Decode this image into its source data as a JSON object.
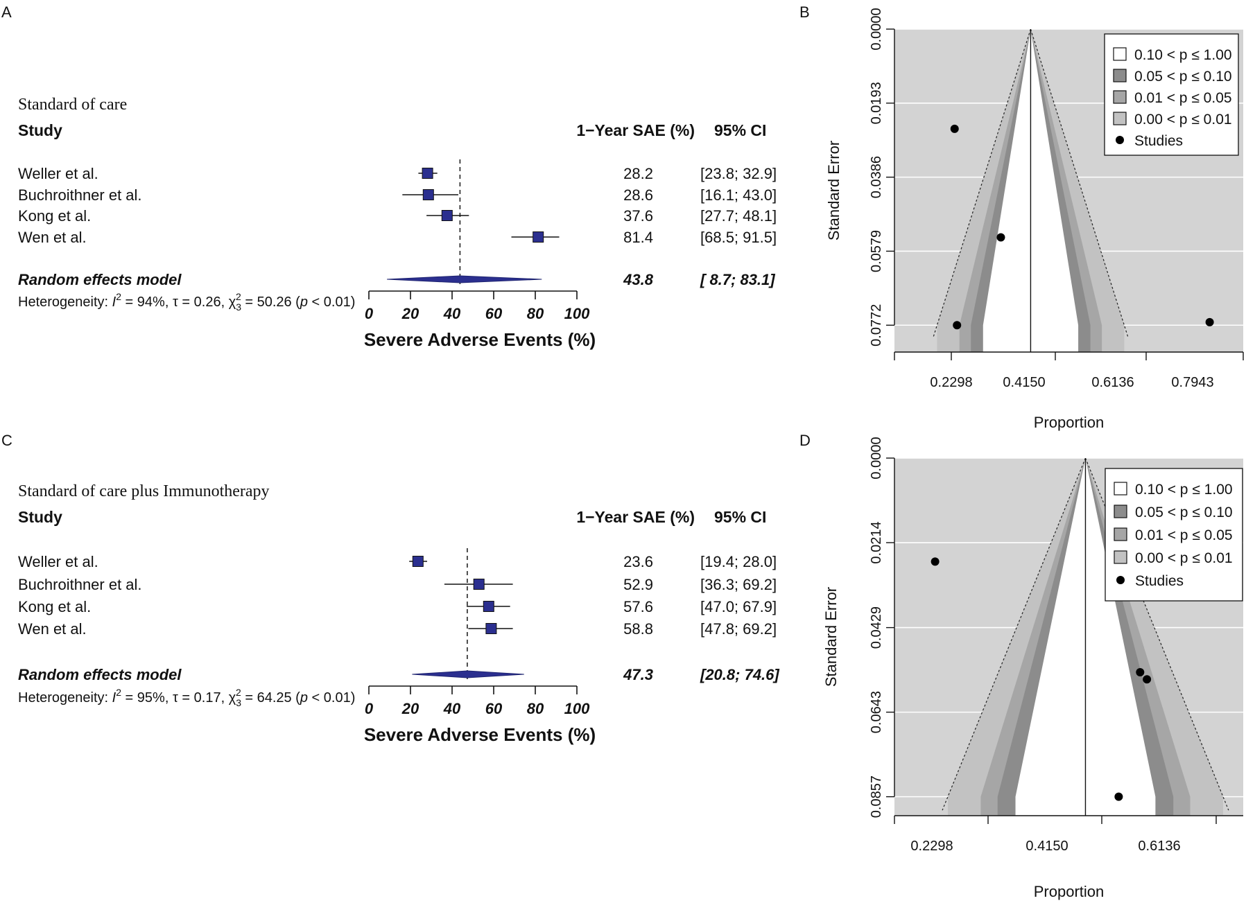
{
  "panel_labels": [
    "A",
    "B",
    "C",
    "D"
  ],
  "chart_data": [
    {
      "type": "forest",
      "panel": "A",
      "title": "Standard of care",
      "col_study": "Study",
      "col_est": "1−Year SAE (%)",
      "col_ci": "95% CI",
      "studies": [
        {
          "name": "Weller et al.",
          "est": 28.2,
          "lo": 23.8,
          "hi": 32.9,
          "est_label": "28.2",
          "ci_label": "[23.8; 32.9]"
        },
        {
          "name": "Buchroithner et al.",
          "est": 28.6,
          "lo": 16.1,
          "hi": 43.0,
          "est_label": "28.6",
          "ci_label": "[16.1; 43.0]"
        },
        {
          "name": "Kong et al.",
          "est": 37.6,
          "lo": 27.7,
          "hi": 48.1,
          "est_label": "37.6",
          "ci_label": "[27.7; 48.1]"
        },
        {
          "name": "Wen et al.",
          "est": 81.4,
          "lo": 68.5,
          "hi": 91.5,
          "est_label": "81.4",
          "ci_label": "[68.5; 91.5]"
        }
      ],
      "pooled": {
        "name": "Random effects model",
        "est": 43.8,
        "lo": 8.7,
        "hi": 83.1,
        "est_label": "43.8",
        "ci_label": "[ 8.7; 83.1]"
      },
      "heterogeneity": {
        "prefix": "Heterogeneity: ",
        "i2_val": " = 94%, ",
        "tau_val": " = 0.26, ",
        "chi_val": " = 50.26 (",
        "p_val": " < 0.01)"
      },
      "xticks": [
        0,
        20,
        40,
        60,
        80,
        100
      ],
      "xlim": [
        0,
        100
      ],
      "xlabel": "Severe Adverse Events (%)"
    },
    {
      "type": "funnel",
      "panel": "B",
      "ylabel": "Standard Error",
      "xlabel": "Proportion",
      "xticks": [
        "0.2298",
        "0.4150",
        "0.6136",
        "0.7943"
      ],
      "yticks": [
        "0.0000",
        "0.0193",
        "0.0386",
        "0.0579",
        "0.0772"
      ],
      "center": 0.4299,
      "se_max": 0.0772,
      "xlim": [
        0.1405,
        0.8816
      ],
      "ylim": [
        0.0,
        0.0842
      ],
      "points": [
        {
          "x": 0.2683,
          "y": 0.026
        },
        {
          "x": 0.3666,
          "y": 0.0543
        },
        {
          "x": 0.2734,
          "y": 0.0772
        },
        {
          "x": 0.8103,
          "y": 0.0764
        }
      ],
      "legend": [
        "0.10 < p ≤ 1.00",
        "0.05 < p ≤ 0.10",
        "0.01 < p ≤ 0.05",
        "0.00 < p ≤ 0.01",
        "Studies"
      ]
    },
    {
      "type": "forest",
      "panel": "C",
      "title": "Standard of care plus Immunotherapy",
      "col_study": "Study",
      "col_est": "1−Year SAE (%)",
      "col_ci": "95% CI",
      "studies": [
        {
          "name": "Weller et al.",
          "est": 23.6,
          "lo": 19.4,
          "hi": 28.0,
          "est_label": "23.6",
          "ci_label": "[19.4; 28.0]"
        },
        {
          "name": "Buchroithner et al.",
          "est": 52.9,
          "lo": 36.3,
          "hi": 69.2,
          "est_label": "52.9",
          "ci_label": "[36.3; 69.2]"
        },
        {
          "name": "Kong et al.",
          "est": 57.6,
          "lo": 47.0,
          "hi": 67.9,
          "est_label": "57.6",
          "ci_label": "[47.0; 67.9]"
        },
        {
          "name": "Wen et al.",
          "est": 58.8,
          "lo": 47.8,
          "hi": 69.2,
          "est_label": "58.8",
          "ci_label": "[47.8; 69.2]"
        }
      ],
      "pooled": {
        "name": "Random effects model",
        "est": 47.3,
        "lo": 20.8,
        "hi": 74.6,
        "est_label": "47.3",
        "ci_label": "[20.8; 74.6]"
      },
      "heterogeneity": {
        "prefix": "Heterogeneity: ",
        "i2_val": " = 95%, ",
        "tau_val": " = 0.17, ",
        "chi_val": " = 64.25 (",
        "p_val": " < 0.01)"
      },
      "xticks": [
        0,
        20,
        40,
        60,
        80,
        100
      ],
      "xlim": [
        0,
        100
      ],
      "xlabel": "Severe Adverse Events (%)"
    },
    {
      "type": "funnel",
      "panel": "D",
      "ylabel": "Standard Error",
      "xlabel": "Proportion",
      "xticks": [
        "0.2298",
        "0.4150",
        "0.6136"
      ],
      "yticks": [
        "0.0000",
        "0.0214",
        "0.0429",
        "0.0643",
        "0.0857"
      ],
      "center": 0.4752,
      "se_max": 0.0857,
      "xlim": [
        0.1688,
        0.7283
      ],
      "ylim": [
        0.0,
        0.0905
      ],
      "points": [
        {
          "x": 0.234,
          "y": 0.0262
        },
        {
          "x": 0.5629,
          "y": 0.0542
        },
        {
          "x": 0.5738,
          "y": 0.056
        },
        {
          "x": 0.5285,
          "y": 0.0857
        }
      ],
      "legend": [
        "0.10 < p ≤ 1.00",
        "0.05 < p ≤ 0.10",
        "0.01 < p ≤ 0.05",
        "0.00 < p ≤ 0.01",
        "Studies"
      ]
    }
  ]
}
